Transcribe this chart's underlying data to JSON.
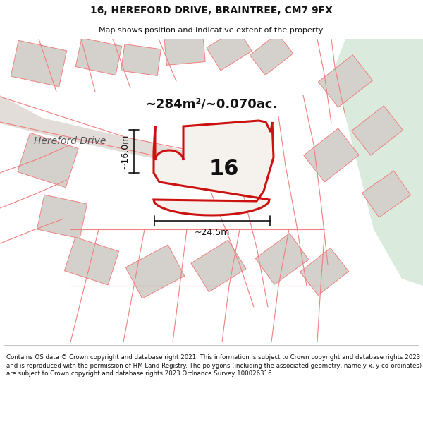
{
  "title": "16, HEREFORD DRIVE, BRAINTREE, CM7 9FX",
  "subtitle": "Map shows position and indicative extent of the property.",
  "footer": "Contains OS data © Crown copyright and database right 2021. This information is subject to Crown copyright and database rights 2023 and is reproduced with the permission of HM Land Registry. The polygons (including the associated geometry, namely x, y co-ordinates) are subject to Crown copyright and database rights 2023 Ordnance Survey 100026316.",
  "area_label": "~284m²/~0.070ac.",
  "width_label": "~24.5m",
  "height_label": "~16.0m",
  "plot_number": "16",
  "street_label": "Hereford Drive",
  "map_bg": "#f0ede8",
  "green_color": "#daeadc",
  "road_fill": "#e2ddd8",
  "building_fill": "#d4d0cb",
  "plot_fill": "#f5f2ed",
  "plot_outline": "#cc1111",
  "cadastral_line": "#f08080",
  "dim_color": "#111111",
  "label_color": "#111111",
  "street_color": "#555555",
  "title_color": "#111111",
  "footer_color": "#111111",
  "white": "#ffffff",
  "title_fontsize": 10,
  "subtitle_fontsize": 8,
  "area_fontsize": 13,
  "dim_fontsize": 9,
  "number_fontsize": 22,
  "street_fontsize": 10,
  "footer_fontsize": 6.2
}
